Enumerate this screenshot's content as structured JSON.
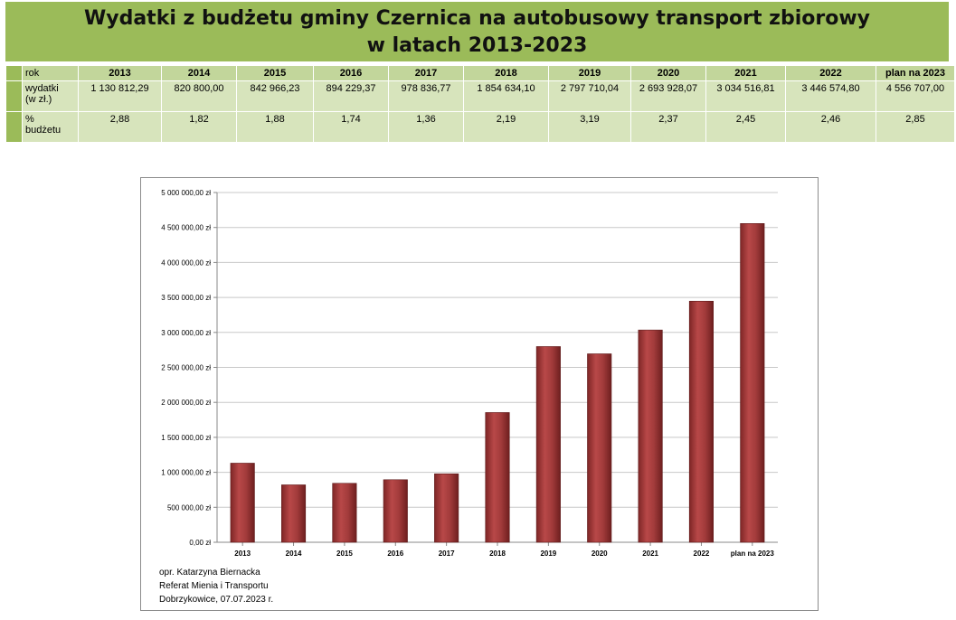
{
  "title": {
    "line1": "Wydatki z budżetu gminy Czernica na autobusowy transport zbiorowy",
    "line2": "w latach 2013-2023"
  },
  "table": {
    "header": {
      "label": "rok",
      "years": [
        "2013",
        "2014",
        "2015",
        "2016",
        "2017",
        "2018",
        "2019",
        "2020",
        "2021",
        "2022",
        "plan na 2023"
      ]
    },
    "rows": [
      {
        "label_line1": "wydatki",
        "label_line2": "(w zł.)",
        "values": [
          "1 130 812,29",
          "820 800,00",
          "842 966,23",
          "894 229,37",
          "978 836,77",
          "1 854 634,10",
          "2 797 710,04",
          "2 693 928,07",
          "3 034 516,81",
          "3 446 574,80",
          "4 556 707,00"
        ]
      },
      {
        "label_line1": "%",
        "label_line2": "budżetu",
        "values": [
          "2,88",
          "1,82",
          "1,88",
          "1,74",
          "1,36",
          "2,19",
          "3,19",
          "2,37",
          "2,45",
          "2,46",
          "2,85"
        ]
      }
    ]
  },
  "chart_data": {
    "type": "bar",
    "categories": [
      "2013",
      "2014",
      "2015",
      "2016",
      "2017",
      "2018",
      "2019",
      "2020",
      "2021",
      "2022",
      "plan na 2023"
    ],
    "values": [
      1130812.29,
      820800.0,
      842966.23,
      894229.37,
      978836.77,
      1854634.1,
      2797710.04,
      2693928.07,
      3034516.81,
      3446574.8,
      4556707.0
    ],
    "ylim": [
      0,
      5000000
    ],
    "yticks": [
      "0,00 zł",
      "500 000,00 zł",
      "1 000 000,00 zł",
      "1 500 000,00 zł",
      "2 000 000,00 zł",
      "2 500 000,00 zł",
      "3 000 000,00 zł",
      "3 500 000,00 zł",
      "4 000 000,00 zł",
      "4 500 000,00 zł",
      "5 000 000,00 zł"
    ],
    "ytick_values": [
      0,
      500000,
      1000000,
      1500000,
      2000000,
      2500000,
      3000000,
      3500000,
      4000000,
      4500000,
      5000000
    ],
    "grid": true,
    "legend": "none",
    "bar_color": "#a23b3b"
  },
  "footer": {
    "line1": "opr. Katarzyna Biernacka",
    "line2": "Referat Mienia i Transportu",
    "line3": "Dobrzykowice, 07.07.2023 r."
  }
}
